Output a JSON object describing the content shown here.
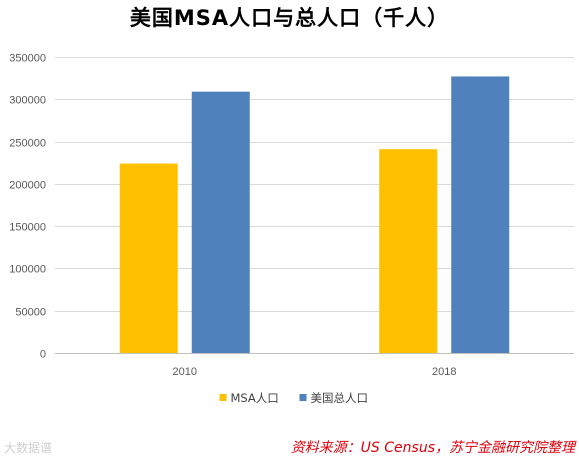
{
  "chart_data": {
    "type": "bar",
    "title": "美国MSA人口与总人口（千人）",
    "categories": [
      "2010",
      "2018"
    ],
    "series": [
      {
        "name": "MSA人口",
        "values": [
          224000,
          241000
        ],
        "color": "#ffc000"
      },
      {
        "name": "美国总人口",
        "values": [
          309000,
          327000
        ],
        "color": "#4f81bd"
      }
    ],
    "ylim": [
      0,
      350000
    ],
    "yticks": [
      0,
      50000,
      100000,
      150000,
      200000,
      250000,
      300000,
      350000
    ],
    "grid": true,
    "legend": "bottom-center"
  },
  "source_note": "资料来源：US Census，苏宁金融研究院整理",
  "watermark": "大数据谱"
}
